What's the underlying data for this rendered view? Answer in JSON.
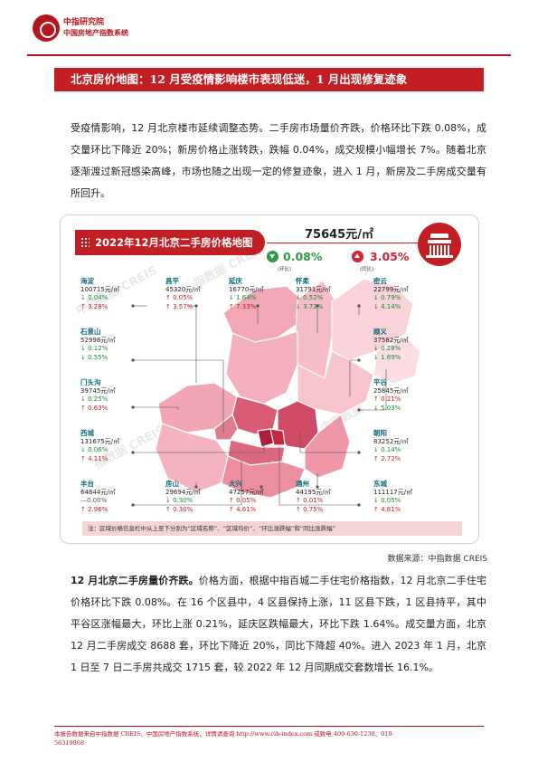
{
  "header": {
    "org_name": "中指研究院",
    "system_name": "中国房地产指数系统"
  },
  "title": "北京房价地图：12 月受疫情影响楼市表现低迷，1 月出现修复迹象",
  "intro_paragraph": "受疫情影响，12 月北京楼市延续调整态势。二手房市场量价齐跌，价格环比下跌 0.08%，成交量环比下降近 20%；新房价格止涨转跌，跌幅 0.04%，成交规模小幅增长 7%。随着北京逐渐渡过新冠感染高峰，市场也随之出现一定的修复迹象，进入 1 月，新房及二手房成交量有所回升。",
  "infographic": {
    "title": "2022年12月北京二手房价格地图",
    "avg_price": "75645元/㎡",
    "mom": {
      "value": "0.08%",
      "label": "(环比)",
      "direction": "down",
      "color": "#2e9a45"
    },
    "yoy": {
      "value": "3.05%",
      "label": "(同比)",
      "direction": "up",
      "color": "#d21f3a"
    },
    "districts": [
      {
        "name": "海淀",
        "price": "100715元/㎡",
        "mom": "↓ 0.04%",
        "yoy": "↑ 3.28%",
        "mom_dir": "down",
        "yoy_dir": "up"
      },
      {
        "name": "昌平",
        "price": "45320元/㎡",
        "mom": "↑ 0.05%",
        "yoy": "↑ 3.57%",
        "mom_dir": "up",
        "yoy_dir": "up"
      },
      {
        "name": "延庆",
        "price": "16770元/㎡",
        "mom": "↓ 1.64%",
        "yoy": "↑ 7.33%",
        "mom_dir": "down",
        "yoy_dir": "up"
      },
      {
        "name": "怀柔",
        "price": "31791元/㎡",
        "mom": "↓ 0.52%",
        "yoy": "↓ 3.72%",
        "mom_dir": "down",
        "yoy_dir": "down"
      },
      {
        "name": "密云",
        "price": "22799元/㎡",
        "mom": "↓ 0.79%",
        "yoy": "↓ 4.14%",
        "mom_dir": "down",
        "yoy_dir": "down"
      },
      {
        "name": "石景山",
        "price": "52998元/㎡",
        "mom": "↓ 0.12%",
        "yoy": "↓ 0.55%",
        "mom_dir": "down",
        "yoy_dir": "down"
      },
      {
        "name": "顺义",
        "price": "37582元/㎡",
        "mom": "↓ 0.28%",
        "yoy": "↓ 1.69%",
        "mom_dir": "down",
        "yoy_dir": "down"
      },
      {
        "name": "门头沟",
        "price": "39745元/㎡",
        "mom": "↓ 0.25%",
        "yoy": "↑ 0.63%",
        "mom_dir": "down",
        "yoy_dir": "up"
      },
      {
        "name": "平谷",
        "price": "25845元/㎡",
        "mom": "↑ 0.21%",
        "yoy": "↓ 5.03%",
        "mom_dir": "up",
        "yoy_dir": "down"
      },
      {
        "name": "西城",
        "price": "131675元/㎡",
        "mom": "↓ 0.06%",
        "yoy": "↑ 4.11%",
        "mom_dir": "down",
        "yoy_dir": "up"
      },
      {
        "name": "朝阳",
        "price": "83252元/㎡",
        "mom": "↓ 0.14%",
        "yoy": "↑ 2.72%",
        "mom_dir": "down",
        "yoy_dir": "up"
      },
      {
        "name": "丰台",
        "price": "64844元/㎡",
        "mom": "—0.00%",
        "yoy": "↑ 2.96%",
        "mom_dir": "flat",
        "yoy_dir": "up"
      },
      {
        "name": "房山",
        "price": "29694元/㎡",
        "mom": "↓ 0.30%",
        "yoy": "↑ 0.30%",
        "mom_dir": "down",
        "yoy_dir": "up"
      },
      {
        "name": "大兴",
        "price": "47257元/㎡",
        "mom": "↑ 0.05%",
        "yoy": "↑ 4.61%",
        "mom_dir": "up",
        "yoy_dir": "up"
      },
      {
        "name": "通州",
        "price": "44195元/㎡",
        "mom": "↑ 0.01%",
        "yoy": "↑ 0.75%",
        "mom_dir": "up",
        "yoy_dir": "up"
      },
      {
        "name": "东城",
        "price": "111117元/㎡",
        "mom": "↓ 0.05%",
        "yoy": "↑ 4.81%",
        "mom_dir": "down",
        "yoy_dir": "up"
      }
    ],
    "note": "注：区域价格信息栏中从上至下分别为“区域名称”、“区域均价”、“环比涨跌幅”和“同比涨跌幅”",
    "watermarks": [
      "中指数据 CREIS",
      "指数据 CREIS",
      "中指数据 CREIS",
      "指数据 CREIS",
      "中指数据"
    ]
  },
  "source": "数据来源：中指数据 CREIS",
  "section2": {
    "lead": "12 月北京二手房量价齐跌。",
    "body": "价格方面，根据中指百城二手住宅价格指数，12 月北京二手住宅价格环比下跌 0.08%。在 16 个区县中，4 区县保持上涨，11 区县下跌，1 区县持平，其中平谷区涨幅最大，环比上涨 0.21%，延庆区跌幅最大，环比下跌 1.64%。成交量方面，北京 12 月二手房成交 8688 套，环比下降近 20%，同比下降超 40%。进入 2023 年 1 月，北京 1 日至 7 日二手房共成交 1715 套，较 2022 年 12 月同期成交套数增长 16.1%。"
  },
  "footer": {
    "line1": "本报告数据来自中指数据 CREIS、中国房地产指数系统，详情请查询 http://www.cih-index.com 或致电 400-630-1230、010-",
    "line2": "56319868"
  },
  "colors": {
    "brand_red": "#c21e24",
    "map_dark": "#c4283f",
    "map_light": "#f7c3cd"
  }
}
